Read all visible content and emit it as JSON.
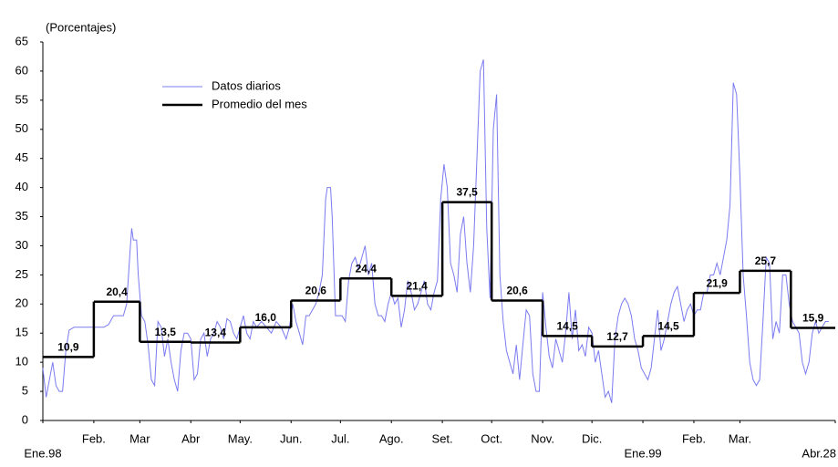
{
  "chart_data": {
    "type": "line",
    "subtitle": "(Porcentajes)",
    "xlim": [
      0,
      482
    ],
    "xticks": [
      {
        "value": 0,
        "label": "Ene.98"
      },
      {
        "value": 31,
        "label": "Feb."
      },
      {
        "value": 59,
        "label": "Mar"
      },
      {
        "value": 90,
        "label": "Abr"
      },
      {
        "value": 120,
        "label": "May."
      },
      {
        "value": 151,
        "label": "Jun."
      },
      {
        "value": 181,
        "label": "Jul."
      },
      {
        "value": 212,
        "label": "Ago."
      },
      {
        "value": 243,
        "label": "Set."
      },
      {
        "value": 273,
        "label": "Oct."
      },
      {
        "value": 304,
        "label": "Nov."
      },
      {
        "value": 334,
        "label": "Dic."
      },
      {
        "value": 365,
        "label": "Ene.99"
      },
      {
        "value": 396,
        "label": "Feb."
      },
      {
        "value": 424,
        "label": "Mar."
      },
      {
        "value": 482,
        "label": "Abr.28"
      }
    ],
    "ylim": [
      0,
      65
    ],
    "yticks": [
      0,
      5,
      10,
      15,
      20,
      25,
      30,
      35,
      40,
      45,
      50,
      55,
      60,
      65
    ],
    "legend": "upper left",
    "series": [
      {
        "name": "Datos diarios",
        "color": "#7b7bf0",
        "style": "line",
        "x": [
          0,
          2,
          4,
          6,
          8,
          10,
          12,
          14,
          16,
          19,
          22,
          25,
          28,
          31,
          34,
          37,
          40,
          43,
          46,
          49,
          51,
          53,
          54,
          55,
          57,
          58,
          60,
          62,
          64,
          66,
          68,
          70,
          72,
          74,
          76,
          78,
          80,
          82,
          84,
          86,
          88,
          90,
          92,
          94,
          96,
          98,
          100,
          102,
          104,
          106,
          108,
          110,
          112,
          114,
          116,
          118,
          120,
          122,
          124,
          126,
          128,
          130,
          133,
          136,
          139,
          142,
          145,
          148,
          150,
          152,
          154,
          156,
          158,
          160,
          162,
          164,
          166,
          168,
          170,
          172,
          173,
          175,
          176,
          178,
          180,
          182,
          184,
          186,
          188,
          190,
          192,
          194,
          196,
          198,
          200,
          202,
          204,
          206,
          208,
          210,
          212,
          214,
          216,
          218,
          220,
          222,
          224,
          226,
          228,
          230,
          232,
          234,
          236,
          238,
          240,
          242,
          244,
          246,
          248,
          250,
          252,
          254,
          256,
          258,
          260,
          262,
          264,
          266,
          268,
          270,
          272,
          274,
          276,
          278,
          280,
          282,
          284,
          286,
          288,
          290,
          292,
          294,
          296,
          298,
          300,
          302,
          304,
          306,
          308,
          310,
          312,
          314,
          316,
          318,
          320,
          322,
          324,
          326,
          328,
          330,
          332,
          334,
          336,
          338,
          340,
          342,
          344,
          346,
          348,
          350,
          352,
          354,
          356,
          358,
          360,
          362,
          364,
          366,
          368,
          370,
          372,
          374,
          376,
          378,
          380,
          382,
          384,
          386,
          388,
          390,
          392,
          394,
          396,
          398,
          400,
          402,
          404,
          406,
          408,
          410,
          412,
          414,
          416,
          418,
          420,
          422,
          424,
          426,
          428,
          430,
          432,
          434,
          436,
          438,
          440,
          442,
          444,
          446,
          448,
          450,
          452,
          454,
          456,
          458,
          460,
          462,
          464,
          466,
          468,
          470,
          472,
          474,
          476,
          478
        ],
        "values": [
          9,
          4,
          7,
          10,
          6,
          5,
          5,
          12,
          15.5,
          16,
          16,
          16,
          16,
          16,
          16,
          16,
          16.5,
          18,
          18,
          18,
          20,
          29,
          33,
          31,
          31,
          25,
          18,
          17,
          13,
          7,
          6,
          17,
          16,
          11,
          14,
          10,
          7,
          5,
          12,
          15,
          15,
          14,
          7,
          8,
          14,
          15,
          11,
          14,
          15,
          17,
          16,
          14,
          17.5,
          17,
          15,
          14,
          16,
          18,
          15,
          14,
          17,
          16,
          17,
          16,
          15,
          17,
          16,
          14,
          16,
          20,
          17,
          15,
          13,
          18,
          18,
          19,
          20,
          22,
          25,
          38,
          40,
          40,
          35,
          18,
          18,
          18,
          17,
          24,
          27,
          28,
          26,
          28,
          30,
          25,
          27,
          20,
          18,
          18,
          17,
          20,
          22,
          20,
          21,
          16,
          19,
          24,
          22,
          19,
          20,
          22,
          24,
          20,
          19,
          22,
          24,
          38,
          44,
          40,
          27,
          25,
          22,
          32,
          35,
          27,
          22,
          30,
          45,
          60,
          62,
          33,
          21,
          50,
          56,
          25,
          17,
          12,
          10,
          8,
          13,
          7,
          13,
          19,
          18,
          8,
          5,
          5,
          22,
          16,
          11,
          9,
          14,
          12,
          10,
          15,
          22,
          14,
          19,
          12,
          13,
          11,
          16,
          15,
          10,
          12,
          8,
          4,
          5,
          3,
          14,
          18,
          20,
          21,
          20,
          18,
          14,
          12,
          9,
          8,
          7,
          9,
          14,
          19,
          12,
          14,
          17,
          20,
          22,
          23,
          20,
          17,
          19,
          20,
          18,
          19,
          19,
          22,
          22,
          25,
          25,
          27,
          25,
          28,
          31,
          37,
          58,
          56,
          42,
          25,
          18,
          10,
          7,
          6,
          7,
          17,
          28,
          27,
          14,
          17,
          15,
          25,
          25,
          20,
          17,
          16,
          15,
          10,
          8,
          10,
          15,
          17,
          15,
          16,
          17,
          17
        ]
      },
      {
        "name": "Promedio del mes",
        "color": "#000000",
        "style": "step",
        "x": [
          0,
          31,
          59,
          90,
          120,
          151,
          181,
          212,
          243,
          273,
          304,
          334,
          365,
          396,
          424,
          455
        ],
        "values": [
          10.9,
          20.4,
          13.5,
          13.4,
          16.0,
          20.6,
          24.4,
          21.4,
          37.5,
          20.6,
          14.5,
          12.7,
          14.5,
          21.9,
          25.7,
          15.9
        ],
        "value_labels": [
          "10,9",
          "20,4",
          "13,5",
          "13,4",
          "16,0",
          "20,6",
          "24,4",
          "21,4",
          "37,5",
          "20,6",
          "14,5",
          "12,7",
          "14,5",
          "21,9",
          "25,7",
          "15,9"
        ]
      }
    ]
  }
}
